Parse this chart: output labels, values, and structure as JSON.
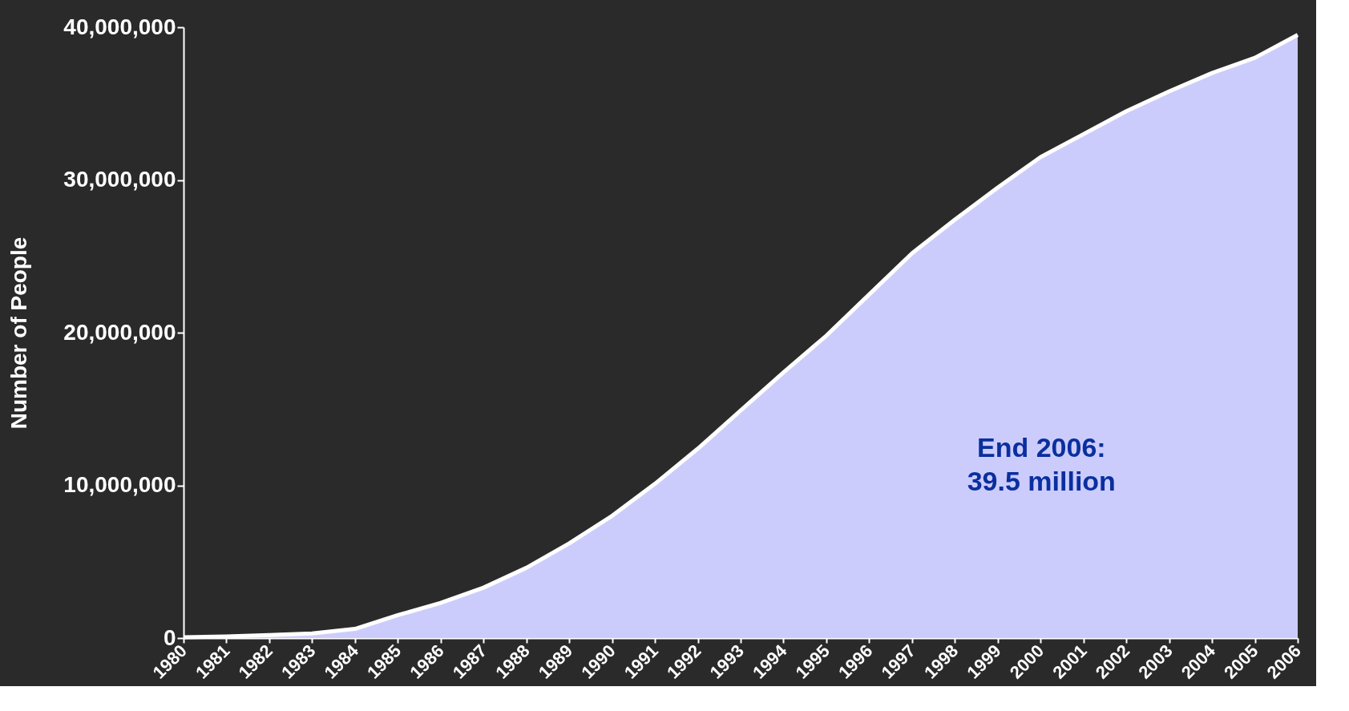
{
  "chart_data": {
    "type": "area",
    "ylabel": "Number of People",
    "categories": [
      "1980",
      "1981",
      "1982",
      "1983",
      "1984",
      "1985",
      "1986",
      "1987",
      "1988",
      "1989",
      "1990",
      "1991",
      "1992",
      "1993",
      "1994",
      "1995",
      "1996",
      "1997",
      "1998",
      "1999",
      "2000",
      "2001",
      "2002",
      "2003",
      "2004",
      "2005",
      "2006"
    ],
    "series": [
      {
        "color": "#ccccfc",
        "values": [
          50000,
          100000,
          200000,
          300000,
          600000,
          1500000,
          2300000,
          3300000,
          4600000,
          6200000,
          8000000,
          10100000,
          12400000,
          14900000,
          17400000,
          19800000,
          22500000,
          25200000,
          27400000,
          29500000,
          31500000,
          33000000,
          34500000,
          35800000,
          37000000,
          38000000,
          39500000
        ]
      }
    ],
    "ylim": [
      0,
      40000000
    ],
    "yticks": [
      0,
      {
        "value": 10000000,
        "label": "10,000,000"
      },
      {
        "value": 20000000,
        "label": "20,000,000"
      },
      {
        "value": 30000000,
        "label": "30,000,000"
      },
      {
        "value": 40000000,
        "label": "40,000,000"
      }
    ],
    "grid": false,
    "annotations": [
      "End 2006:\n39.5 million"
    ]
  }
}
